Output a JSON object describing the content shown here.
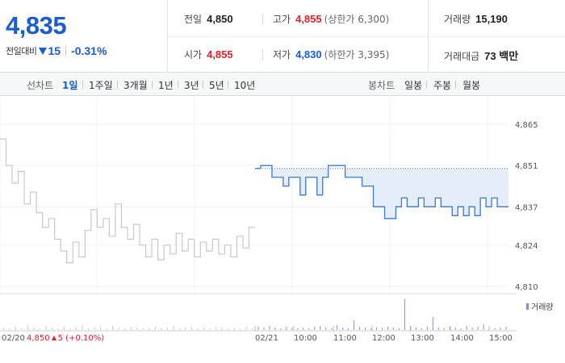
{
  "summary": {
    "price": "4,835",
    "diff_label": "전일대비",
    "diff_value": "15",
    "diff_pct": "-0.31%",
    "prev_close_label": "전일",
    "prev_close": "4,850",
    "high_label": "고가",
    "high": "4,855",
    "upper_limit": "(상한가 6,300)",
    "volume_label": "거래량",
    "volume": "15,190",
    "open_label": "시가",
    "open": "4,855",
    "low_label": "저가",
    "low": "4,830",
    "lower_limit": "(하한가 3,395)",
    "amount_label": "거래대금",
    "amount": "73 백만"
  },
  "period_bar": {
    "line_label": "선차트",
    "line_items": [
      "1일",
      "1주일",
      "3개월",
      "1년",
      "3년",
      "5년",
      "10년"
    ],
    "active": "1일",
    "candle_label": "봉차트",
    "candle_items": [
      "일봉",
      "주봉",
      "월봉"
    ]
  },
  "chart_data": {
    "type": "line",
    "y_ticks": [
      "4,865",
      "4,851",
      "4,837",
      "4,824",
      "4,810"
    ],
    "ylim": [
      4810,
      4865
    ],
    "reference_level": 4850,
    "legend": "거래량",
    "x_labels": [
      "02/20",
      "02/21",
      "10:00",
      "11:00",
      "12:00",
      "13:00",
      "14:00",
      "15:00"
    ],
    "prev_day_info": "4,850",
    "prev_day_change": "5 (+0.10%)",
    "series": [
      {
        "values": [
          4860,
          4851,
          4845,
          4849,
          4838,
          4842,
          4835,
          4830,
          4833,
          4826,
          4822,
          4818,
          4825,
          4820,
          4829,
          4836,
          4830,
          4833,
          4827,
          4838,
          4830,
          4826,
          4831,
          4824,
          4820,
          4826,
          4819,
          4824,
          4821,
          4828,
          4822,
          4826,
          4820,
          4825,
          4822,
          4826,
          4821,
          4824,
          4820,
          4827,
          4823,
          4830
        ]
      },
      {
        "values": [
          4850,
          4851,
          4851,
          4847,
          4847,
          4844,
          4847,
          4847,
          4841,
          4847,
          4847,
          4841,
          4847,
          4851,
          4851,
          4851,
          4847,
          4847,
          4847,
          4844,
          4844,
          4837,
          4837,
          4833,
          4833,
          4837,
          4840,
          4837,
          4837,
          4840,
          4837,
          4837,
          4840,
          4837,
          4837,
          4834,
          4837,
          4834,
          4837,
          4834,
          4840,
          4837,
          4840,
          4837,
          4837
        ]
      }
    ],
    "volume": [
      {
        "values": [
          3,
          2,
          4,
          2,
          6,
          3,
          2,
          5,
          3,
          2,
          4,
          2,
          3,
          6,
          2,
          3,
          4,
          2,
          5,
          3,
          2,
          4,
          3,
          2,
          3,
          4,
          2,
          3,
          5,
          2,
          3,
          4,
          2,
          3,
          2,
          4,
          3,
          2,
          3,
          2,
          4,
          3
        ]
      },
      {
        "values": [
          4,
          3,
          5,
          3,
          2,
          4,
          3,
          2,
          3,
          2,
          4,
          5,
          3,
          2,
          6,
          3,
          2,
          12,
          4,
          3,
          2,
          3,
          2,
          4,
          3,
          2,
          38,
          5,
          3,
          2,
          4,
          16,
          3,
          2,
          4,
          3,
          2,
          5,
          3,
          4,
          7,
          3,
          2,
          3,
          4
        ]
      }
    ],
    "colors": {
      "prev": "#c8c8c8",
      "today": "#3a78d4",
      "fill": "#e4eefb",
      "volume": "#a780c9",
      "volume_prev": "#c8c8c8"
    }
  }
}
